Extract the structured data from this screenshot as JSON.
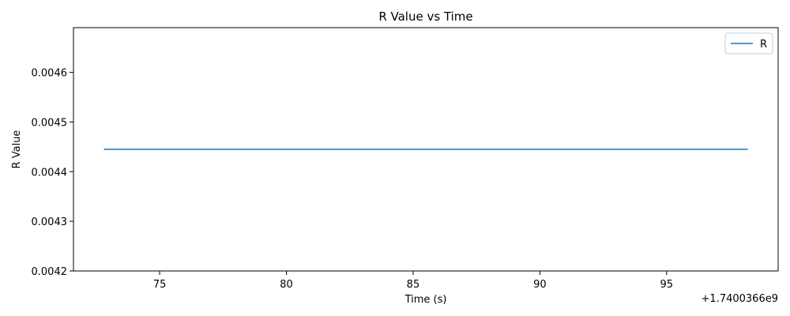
{
  "chart_data": {
    "type": "line",
    "title": "R Value vs Time",
    "xlabel": "Time (s)",
    "ylabel": "R Value",
    "x_offset_label": "+1.7400366e9",
    "xlim": [
      71.6,
      99.4
    ],
    "ylim": [
      0.0042,
      0.00469
    ],
    "x_ticks": [
      75,
      80,
      85,
      90,
      95
    ],
    "x_tick_labels": [
      "75",
      "80",
      "85",
      "90",
      "95"
    ],
    "y_ticks": [
      0.0042,
      0.0043,
      0.0044,
      0.0045,
      0.0046
    ],
    "y_tick_labels": [
      "0.0042",
      "0.0043",
      "0.0044",
      "0.0045",
      "0.0046"
    ],
    "grid": false,
    "legend_position": "top-right",
    "series": [
      {
        "name": "R",
        "color": "#1f77b4",
        "x": [
          72.8,
          98.2
        ],
        "y": [
          0.004445,
          0.004445
        ]
      }
    ]
  }
}
